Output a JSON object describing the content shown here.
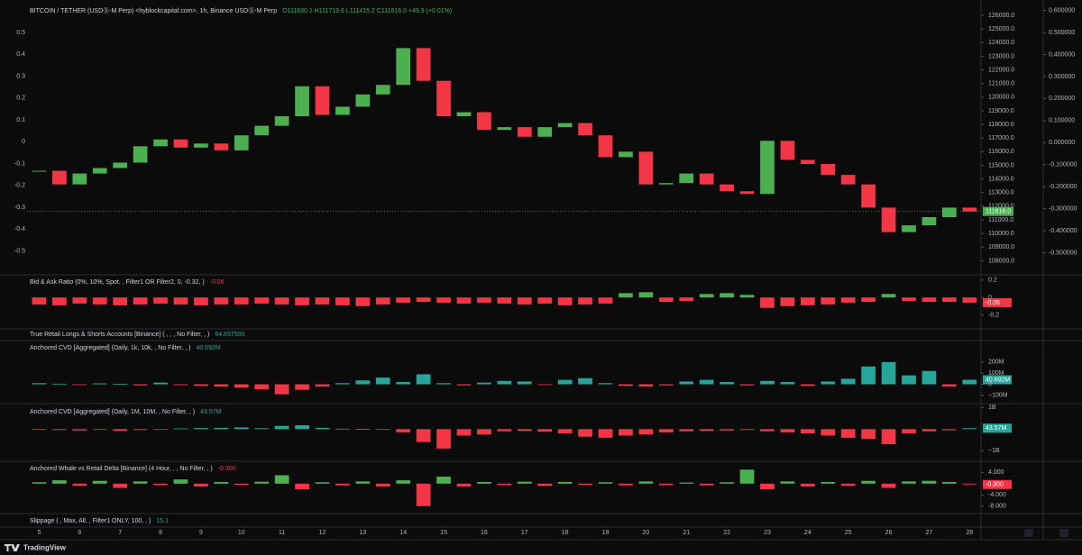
{
  "chart_data": [
    {
      "type": "candlestick",
      "title": "BITCOIN / TETHER (USDⓈ-M Perp) <hyblockcapital.com>, 1h, Binance USDⓈ-M Perp",
      "subtitle": "O111630.1 H111719.6 L111415.2 C111616.0 +49.9 (+0.01%)",
      "x": [
        5,
        5.5,
        6,
        6.5,
        7,
        7.5,
        8,
        8.5,
        9,
        9.5,
        10,
        10.5,
        11,
        11.5,
        12,
        12.5,
        13,
        13.5,
        14,
        14.5,
        15,
        15.5,
        16,
        16.5,
        17,
        17.5,
        18,
        18.5,
        19,
        19.5,
        20,
        20.5,
        21,
        21.5,
        22,
        22.5,
        23,
        23.5,
        24,
        24.5,
        25,
        25.5,
        26,
        26.5,
        27,
        27.5,
        28
      ],
      "values": [
        114600,
        113600,
        114400,
        114800,
        115200,
        116400,
        116900,
        116300,
        116600,
        116100,
        117200,
        117900,
        118600,
        120800,
        118700,
        119300,
        120200,
        120900,
        123600,
        121200,
        118600,
        118900,
        117600,
        117800,
        117100,
        117800,
        118100,
        117200,
        115600,
        116000,
        113600,
        113700,
        114400,
        113600,
        113100,
        112900,
        116800,
        115400,
        115100,
        114300,
        113600,
        111900,
        110100,
        110600,
        111200,
        111900,
        111616
      ],
      "last_label": "111616.0",
      "up_color": "#4caf50",
      "down_color": "#f23645",
      "xlim": [
        4.7,
        28.15
      ],
      "xticks": [
        5,
        6,
        7,
        8,
        9,
        10,
        11,
        12,
        13,
        14,
        15,
        16,
        17,
        18,
        19,
        20,
        21,
        22,
        23,
        24,
        25,
        26,
        27,
        28
      ],
      "ylim": [
        107300,
        126600
      ],
      "yticks": [
        {
          "value": 126000,
          "label": "126000.0"
        },
        {
          "value": 125000,
          "label": "125000.0"
        },
        {
          "value": 124000,
          "label": "124000.0"
        },
        {
          "value": 123000,
          "label": "123000.0"
        },
        {
          "value": 122000,
          "label": "122000.0"
        },
        {
          "value": 121000,
          "label": "121000.0"
        },
        {
          "value": 120000,
          "label": "120000.0"
        },
        {
          "value": 119000,
          "label": "119000.0"
        },
        {
          "value": 118000,
          "label": "118000.0"
        },
        {
          "value": 117000,
          "label": "117000.0"
        },
        {
          "value": 116000,
          "label": "116000.0"
        },
        {
          "value": 115000,
          "label": "115000.0"
        },
        {
          "value": 114000,
          "label": "114000.0"
        },
        {
          "value": 113000,
          "label": "113000.0"
        },
        {
          "value": 112000,
          "label": "112000.0"
        },
        {
          "value": 111000,
          "label": "111000.0"
        },
        {
          "value": 110000,
          "label": "110000.0"
        },
        {
          "value": 109000,
          "label": "109000.0"
        },
        {
          "value": 108000,
          "label": "108000.0"
        }
      ],
      "y2lim": [
        -0.588,
        0.616
      ],
      "y2ticks": [
        0.5,
        0.4,
        0.3,
        0.2,
        0.1,
        0,
        -0.1,
        -0.2,
        -0.3,
        -0.4,
        -0.5
      ],
      "y3lim": [
        -0.58,
        0.615
      ],
      "y3ticks": [
        {
          "value": 0.6,
          "label": "0.600000"
        },
        {
          "value": 0.5,
          "label": "0.500000"
        },
        {
          "value": 0.4,
          "label": "0.400000"
        },
        {
          "value": 0.3,
          "label": "0.300000"
        },
        {
          "value": 0.2,
          "label": "0.200000"
        },
        {
          "value": 0.1,
          "label": "0.100000"
        },
        {
          "value": 0,
          "label": "0.000000"
        },
        {
          "value": -0.1,
          "label": "-0.100000"
        },
        {
          "value": -0.2,
          "label": "-0.200000"
        },
        {
          "value": -0.3,
          "label": "-0.300000"
        },
        {
          "value": -0.4,
          "label": "-0.400000"
        },
        {
          "value": -0.5,
          "label": "-0.500000"
        }
      ]
    },
    {
      "type": "bar",
      "title": "Bid & Ask Ratio (0%, 10%, Spot, , Filter1 OR Filter2, 0, -0.32, )",
      "value_label": "-0.06",
      "x": [
        5,
        5.5,
        6,
        6.5,
        7,
        7.5,
        8,
        8.5,
        9,
        9.5,
        10,
        10.5,
        11,
        11.5,
        12,
        12.5,
        13,
        13.5,
        14,
        14.5,
        15,
        15.5,
        16,
        16.5,
        17,
        17.5,
        18,
        18.5,
        19,
        19.5,
        20,
        20.5,
        21,
        21.5,
        22,
        22.5,
        23,
        23.5,
        24,
        24.5,
        25,
        25.5,
        26,
        26.5,
        27,
        27.5,
        28
      ],
      "values": [
        -0.08,
        -0.09,
        -0.07,
        -0.08,
        -0.09,
        -0.08,
        -0.07,
        -0.08,
        -0.09,
        -0.08,
        -0.08,
        -0.07,
        -0.08,
        -0.09,
        -0.08,
        -0.09,
        -0.1,
        -0.08,
        -0.06,
        -0.05,
        -0.06,
        -0.07,
        -0.06,
        -0.07,
        -0.08,
        -0.07,
        -0.09,
        -0.08,
        -0.07,
        0.05,
        0.06,
        -0.05,
        -0.04,
        0.04,
        0.05,
        0.03,
        -0.12,
        -0.1,
        -0.09,
        -0.08,
        -0.06,
        -0.05,
        0.04,
        -0.04,
        -0.05,
        -0.05,
        -0.06
      ],
      "up_color": "#4caf50",
      "down_color": "#f23645",
      "xlim": [
        4.7,
        28.15
      ],
      "ylim": [
        -0.35,
        0.25
      ],
      "yticks": [
        0.2,
        0,
        -0.2
      ]
    },
    {
      "type": "indicator",
      "title": "True Retail Longs & Shorts Accounts [Binance] ( , , , No Filter, , )",
      "value_label": "64.657500"
    },
    {
      "type": "bar",
      "title": "Anchored CVD [Aggregated] (Daily, 1k, 10k, , No Filter, , )",
      "value_label": "40.692M",
      "x": [
        5,
        5.5,
        6,
        6.5,
        7,
        7.5,
        8,
        8.5,
        9,
        9.5,
        10,
        10.5,
        11,
        11.5,
        12,
        12.5,
        13,
        13.5,
        14,
        14.5,
        15,
        15.5,
        16,
        16.5,
        17,
        17.5,
        18,
        18.5,
        19,
        19.5,
        20,
        20.5,
        21,
        21.5,
        22,
        22.5,
        23,
        23.5,
        24,
        24.5,
        25,
        25.5,
        26,
        26.5,
        27,
        27.5,
        28
      ],
      "values": [
        10000000,
        5000000,
        -5000000,
        8000000,
        3000000,
        -10000000,
        15000000,
        -8000000,
        -15000000,
        -20000000,
        -30000000,
        -45000000,
        -90000000,
        -50000000,
        -20000000,
        10000000,
        35000000,
        60000000,
        20000000,
        90000000,
        10000000,
        -10000000,
        15000000,
        30000000,
        25000000,
        -5000000,
        40000000,
        55000000,
        10000000,
        -15000000,
        -20000000,
        -10000000,
        25000000,
        40000000,
        20000000,
        -10000000,
        30000000,
        20000000,
        -15000000,
        25000000,
        50000000,
        160000000,
        200000000,
        80000000,
        120000000,
        -20000000,
        40692000
      ],
      "up_color": "#26a69a",
      "down_color": "#f23645",
      "xlim": [
        4.7,
        28.15
      ],
      "ylim": [
        -150000000,
        280000000
      ],
      "yticks": [
        {
          "value": 200000000,
          "label": "200M"
        },
        {
          "value": 100000000,
          "label": "100M"
        },
        0,
        {
          "value": -100000000,
          "label": "−100M"
        }
      ]
    },
    {
      "type": "bar",
      "title": "Anchored CVD [Aggregated] (Daily, 1M, 10M, , No Filter, , )",
      "value_label": "43.57M",
      "x": [
        5,
        5.5,
        6,
        6.5,
        7,
        7.5,
        8,
        8.5,
        9,
        9.5,
        10,
        10.5,
        11,
        11.5,
        12,
        12.5,
        13,
        13.5,
        14,
        14.5,
        15,
        15.5,
        16,
        16.5,
        17,
        17.5,
        18,
        18.5,
        19,
        19.5,
        20,
        20.5,
        21,
        21.5,
        22,
        22.5,
        23,
        23.5,
        24,
        24.5,
        25,
        25.5,
        26,
        26.5,
        27,
        27.5,
        28
      ],
      "values": [
        -20000000,
        -40000000,
        -60000000,
        -30000000,
        -80000000,
        -40000000,
        -20000000,
        30000000,
        50000000,
        60000000,
        80000000,
        40000000,
        150000000,
        180000000,
        60000000,
        20000000,
        10000000,
        -30000000,
        -150000000,
        -600000000,
        -900000000,
        -300000000,
        -250000000,
        -100000000,
        -80000000,
        -120000000,
        -200000000,
        -350000000,
        -400000000,
        -300000000,
        -250000000,
        -150000000,
        -100000000,
        -80000000,
        -60000000,
        -40000000,
        -100000000,
        -150000000,
        -200000000,
        -300000000,
        -400000000,
        -450000000,
        -700000000,
        -200000000,
        -100000000,
        -50000000,
        43570000
      ],
      "up_color": "#26a69a",
      "down_color": "#f23645",
      "xlim": [
        4.7,
        28.15
      ],
      "ylim": [
        -1200000000,
        1100000000
      ],
      "yticks": [
        {
          "value": 1000000000,
          "label": "1B"
        },
        {
          "value": -1000000000,
          "label": "−1B"
        }
      ]
    },
    {
      "type": "bar",
      "title": "Anchored Whale vs Retail Delta [Binance] (4 Hour, , , No Filter, , )",
      "value_label": "-0.300",
      "x": [
        5,
        5.5,
        6,
        6.5,
        7,
        7.5,
        8,
        8.5,
        9,
        9.5,
        10,
        10.5,
        11,
        11.5,
        12,
        12.5,
        13,
        13.5,
        14,
        14.5,
        15,
        15.5,
        16,
        16.5,
        17,
        17.5,
        18,
        18.5,
        19,
        19.5,
        20,
        20.5,
        21,
        21.5,
        22,
        22.5,
        23,
        23.5,
        24,
        24.5,
        25,
        25.5,
        26,
        26.5,
        27,
        27.5,
        28
      ],
      "values": [
        0.5,
        1.2,
        -0.8,
        1,
        -1.5,
        0.8,
        -0.5,
        1.5,
        -1,
        0.6,
        -0.4,
        0.7,
        3,
        -2,
        0.5,
        -0.6,
        0.8,
        -1,
        1.2,
        -8,
        2.5,
        -1,
        0.6,
        -0.5,
        0.7,
        -0.8,
        0.6,
        -0.4,
        0.5,
        -0.6,
        0.8,
        -0.5,
        0.4,
        -0.6,
        0.5,
        5,
        -2,
        0.8,
        -1,
        0.6,
        -0.8,
        1,
        -1.5,
        0.8,
        1,
        0.6,
        -0.3
      ],
      "up_color": "#4caf50",
      "down_color": "#f23645",
      "xlim": [
        4.7,
        28.15
      ],
      "ylim": [
        -10,
        7
      ],
      "yticks": [
        {
          "value": 4,
          "label": "4.000"
        },
        {
          "value": -4,
          "label": "-4.000"
        },
        {
          "value": -8,
          "label": "-8.000"
        }
      ]
    },
    {
      "type": "indicator",
      "title": "Slippage ( , Max, All, , Filter1 ONLY, 100, , )",
      "value_label": "15.1"
    }
  ],
  "footer": {
    "brand": "TradingView"
  }
}
